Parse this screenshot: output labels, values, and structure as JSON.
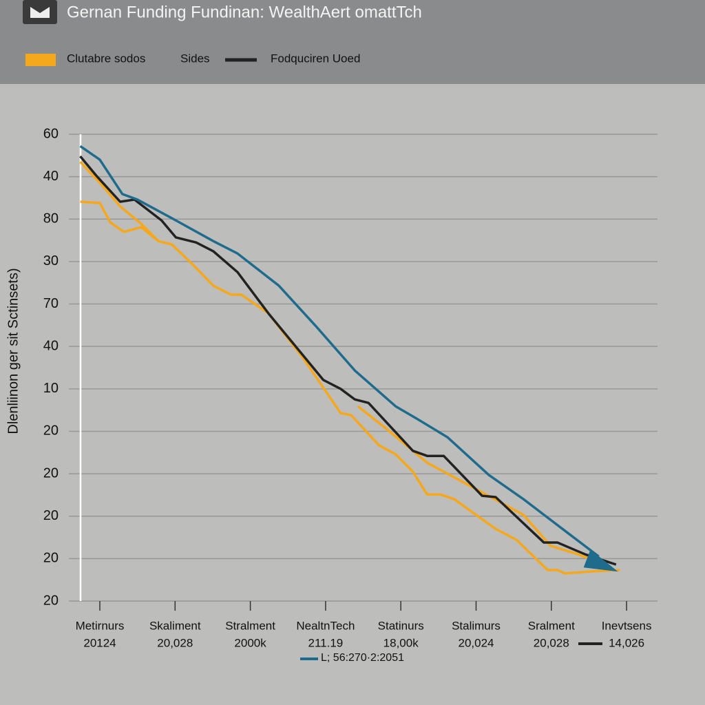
{
  "chart_data": {
    "type": "line",
    "title": "Gernan Funding Fundinan: WealthAert omattTch",
    "legend_note": "Sides",
    "y_label": "Dlenliinon ger sit Sctinsets)",
    "categories": [
      "Metirnurs",
      "Skaliment",
      "Stralment",
      "NealtnTech",
      "Statinurs",
      "Stalimurs",
      "Sralment",
      "Inevtsens"
    ],
    "category_subtitles": [
      "20124",
      "20,028",
      "2000k",
      "211.19",
      "18,00k",
      "20,024",
      "20,028",
      "14,026"
    ],
    "ylim": [
      0,
      11
    ],
    "yticks": [
      {
        "value": 11,
        "label": "60"
      },
      {
        "value": 10,
        "label": "40"
      },
      {
        "value": 9,
        "label": "80"
      },
      {
        "value": 8,
        "label": "30"
      },
      {
        "value": 7,
        "label": "70"
      },
      {
        "value": 6,
        "label": "40"
      },
      {
        "value": 5,
        "label": "10"
      },
      {
        "value": 4,
        "label": "20"
      },
      {
        "value": 3,
        "label": "20"
      },
      {
        "value": 2,
        "label": "20"
      },
      {
        "value": 1,
        "label": "20"
      },
      {
        "value": 0,
        "label": "20"
      }
    ],
    "grid": true,
    "series": [
      {
        "name": "Clutabre sodos",
        "color": "#f5a81c",
        "legend": "top",
        "x": [
          -0.26,
          0,
          0.27,
          0.55,
          0.78,
          0.96,
          1.24,
          1.51,
          1.74,
          1.88,
          2.24,
          2.7,
          3.2,
          3.34,
          3.71,
          3.93,
          4.16,
          4.35,
          4.53,
          4.71,
          5.26,
          5.54,
          5.95,
          6.08,
          6.18,
          6.54,
          6.91
        ],
        "values": [
          10.35,
          9.86,
          9.3,
          8.89,
          8.48,
          8.4,
          7.92,
          7.43,
          7.22,
          7.22,
          6.78,
          5.73,
          4.43,
          4.38,
          3.67,
          3.46,
          3.05,
          2.51,
          2.51,
          2.4,
          1.7,
          1.44,
          0.73,
          0.73,
          0.65,
          0.7,
          0.73
        ]
      },
      {
        "color": "#f5a81c",
        "x": [
          -0.26,
          0,
          0.14,
          0.32,
          0.55,
          0.78,
          2.0,
          3.43,
          3.8,
          4.35,
          5.08,
          5.63,
          5.99,
          6.36,
          6.73
        ],
        "values": [
          9.41,
          9.38,
          8.92,
          8.7,
          8.81,
          8.48,
          null,
          4.59,
          4.07,
          3.26,
          2.56,
          2.03,
          1.3,
          1.1,
          0.83
        ]
      },
      {
        "name": "Fodquciren Uoed",
        "color": "#222222",
        "legend": "top",
        "x": [
          -0.26,
          -0.05,
          0.27,
          0.46,
          0.82,
          1.01,
          1.28,
          1.51,
          1.83,
          2.24,
          2.97,
          3.2,
          3.39,
          3.57,
          4.16,
          4.35,
          4.57,
          5.08,
          5.26,
          5.9,
          6.08,
          6.45,
          6.86
        ],
        "values": [
          10.48,
          10.03,
          9.41,
          9.46,
          8.97,
          8.57,
          8.45,
          8.24,
          7.75,
          6.78,
          5.21,
          5.0,
          4.75,
          4.67,
          3.54,
          3.42,
          3.42,
          2.48,
          2.45,
          1.38,
          1.38,
          1.1,
          0.86
        ]
      },
      {
        "name": "L; 56:270·2:2051",
        "color": "#1f6b8c",
        "legend": "bottom",
        "x": [
          -0.26,
          0,
          0.3,
          0.5,
          1.01,
          1.51,
          1.83,
          2.38,
          2.88,
          3.39,
          3.93,
          4.21,
          4.62,
          5.17,
          5.63,
          6.17,
          6.63
        ],
        "values": [
          10.72,
          10.4,
          9.59,
          9.46,
          8.97,
          8.48,
          8.19,
          7.43,
          6.46,
          5.43,
          4.59,
          4.3,
          3.86,
          2.97,
          2.4,
          1.67,
          1.05
        ]
      }
    ]
  }
}
